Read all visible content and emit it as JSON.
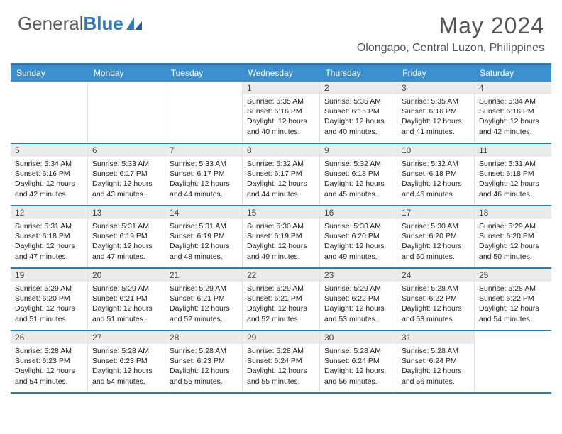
{
  "brand": {
    "part1": "General",
    "part2": "Blue"
  },
  "title": "May 2024",
  "location": "Olongapo, Central Luzon, Philippines",
  "colors": {
    "header_bar": "#3b8fcf",
    "rule": "#2a7abf",
    "daynum_bg": "#ebebeb",
    "text": "#222",
    "title": "#555"
  },
  "weekdays": [
    "Sunday",
    "Monday",
    "Tuesday",
    "Wednesday",
    "Thursday",
    "Friday",
    "Saturday"
  ],
  "weeks": [
    [
      {
        "n": "",
        "sr": "",
        "ss": "",
        "dl": ""
      },
      {
        "n": "",
        "sr": "",
        "ss": "",
        "dl": ""
      },
      {
        "n": "",
        "sr": "",
        "ss": "",
        "dl": ""
      },
      {
        "n": "1",
        "sr": "Sunrise: 5:35 AM",
        "ss": "Sunset: 6:16 PM",
        "dl": "Daylight: 12 hours and 40 minutes."
      },
      {
        "n": "2",
        "sr": "Sunrise: 5:35 AM",
        "ss": "Sunset: 6:16 PM",
        "dl": "Daylight: 12 hours and 40 minutes."
      },
      {
        "n": "3",
        "sr": "Sunrise: 5:35 AM",
        "ss": "Sunset: 6:16 PM",
        "dl": "Daylight: 12 hours and 41 minutes."
      },
      {
        "n": "4",
        "sr": "Sunrise: 5:34 AM",
        "ss": "Sunset: 6:16 PM",
        "dl": "Daylight: 12 hours and 42 minutes."
      }
    ],
    [
      {
        "n": "5",
        "sr": "Sunrise: 5:34 AM",
        "ss": "Sunset: 6:16 PM",
        "dl": "Daylight: 12 hours and 42 minutes."
      },
      {
        "n": "6",
        "sr": "Sunrise: 5:33 AM",
        "ss": "Sunset: 6:17 PM",
        "dl": "Daylight: 12 hours and 43 minutes."
      },
      {
        "n": "7",
        "sr": "Sunrise: 5:33 AM",
        "ss": "Sunset: 6:17 PM",
        "dl": "Daylight: 12 hours and 44 minutes."
      },
      {
        "n": "8",
        "sr": "Sunrise: 5:32 AM",
        "ss": "Sunset: 6:17 PM",
        "dl": "Daylight: 12 hours and 44 minutes."
      },
      {
        "n": "9",
        "sr": "Sunrise: 5:32 AM",
        "ss": "Sunset: 6:18 PM",
        "dl": "Daylight: 12 hours and 45 minutes."
      },
      {
        "n": "10",
        "sr": "Sunrise: 5:32 AM",
        "ss": "Sunset: 6:18 PM",
        "dl": "Daylight: 12 hours and 46 minutes."
      },
      {
        "n": "11",
        "sr": "Sunrise: 5:31 AM",
        "ss": "Sunset: 6:18 PM",
        "dl": "Daylight: 12 hours and 46 minutes."
      }
    ],
    [
      {
        "n": "12",
        "sr": "Sunrise: 5:31 AM",
        "ss": "Sunset: 6:18 PM",
        "dl": "Daylight: 12 hours and 47 minutes."
      },
      {
        "n": "13",
        "sr": "Sunrise: 5:31 AM",
        "ss": "Sunset: 6:19 PM",
        "dl": "Daylight: 12 hours and 47 minutes."
      },
      {
        "n": "14",
        "sr": "Sunrise: 5:31 AM",
        "ss": "Sunset: 6:19 PM",
        "dl": "Daylight: 12 hours and 48 minutes."
      },
      {
        "n": "15",
        "sr": "Sunrise: 5:30 AM",
        "ss": "Sunset: 6:19 PM",
        "dl": "Daylight: 12 hours and 49 minutes."
      },
      {
        "n": "16",
        "sr": "Sunrise: 5:30 AM",
        "ss": "Sunset: 6:20 PM",
        "dl": "Daylight: 12 hours and 49 minutes."
      },
      {
        "n": "17",
        "sr": "Sunrise: 5:30 AM",
        "ss": "Sunset: 6:20 PM",
        "dl": "Daylight: 12 hours and 50 minutes."
      },
      {
        "n": "18",
        "sr": "Sunrise: 5:29 AM",
        "ss": "Sunset: 6:20 PM",
        "dl": "Daylight: 12 hours and 50 minutes."
      }
    ],
    [
      {
        "n": "19",
        "sr": "Sunrise: 5:29 AM",
        "ss": "Sunset: 6:20 PM",
        "dl": "Daylight: 12 hours and 51 minutes."
      },
      {
        "n": "20",
        "sr": "Sunrise: 5:29 AM",
        "ss": "Sunset: 6:21 PM",
        "dl": "Daylight: 12 hours and 51 minutes."
      },
      {
        "n": "21",
        "sr": "Sunrise: 5:29 AM",
        "ss": "Sunset: 6:21 PM",
        "dl": "Daylight: 12 hours and 52 minutes."
      },
      {
        "n": "22",
        "sr": "Sunrise: 5:29 AM",
        "ss": "Sunset: 6:21 PM",
        "dl": "Daylight: 12 hours and 52 minutes."
      },
      {
        "n": "23",
        "sr": "Sunrise: 5:29 AM",
        "ss": "Sunset: 6:22 PM",
        "dl": "Daylight: 12 hours and 53 minutes."
      },
      {
        "n": "24",
        "sr": "Sunrise: 5:28 AM",
        "ss": "Sunset: 6:22 PM",
        "dl": "Daylight: 12 hours and 53 minutes."
      },
      {
        "n": "25",
        "sr": "Sunrise: 5:28 AM",
        "ss": "Sunset: 6:22 PM",
        "dl": "Daylight: 12 hours and 54 minutes."
      }
    ],
    [
      {
        "n": "26",
        "sr": "Sunrise: 5:28 AM",
        "ss": "Sunset: 6:23 PM",
        "dl": "Daylight: 12 hours and 54 minutes."
      },
      {
        "n": "27",
        "sr": "Sunrise: 5:28 AM",
        "ss": "Sunset: 6:23 PM",
        "dl": "Daylight: 12 hours and 54 minutes."
      },
      {
        "n": "28",
        "sr": "Sunrise: 5:28 AM",
        "ss": "Sunset: 6:23 PM",
        "dl": "Daylight: 12 hours and 55 minutes."
      },
      {
        "n": "29",
        "sr": "Sunrise: 5:28 AM",
        "ss": "Sunset: 6:24 PM",
        "dl": "Daylight: 12 hours and 55 minutes."
      },
      {
        "n": "30",
        "sr": "Sunrise: 5:28 AM",
        "ss": "Sunset: 6:24 PM",
        "dl": "Daylight: 12 hours and 56 minutes."
      },
      {
        "n": "31",
        "sr": "Sunrise: 5:28 AM",
        "ss": "Sunset: 6:24 PM",
        "dl": "Daylight: 12 hours and 56 minutes."
      },
      {
        "n": "",
        "sr": "",
        "ss": "",
        "dl": ""
      }
    ]
  ]
}
